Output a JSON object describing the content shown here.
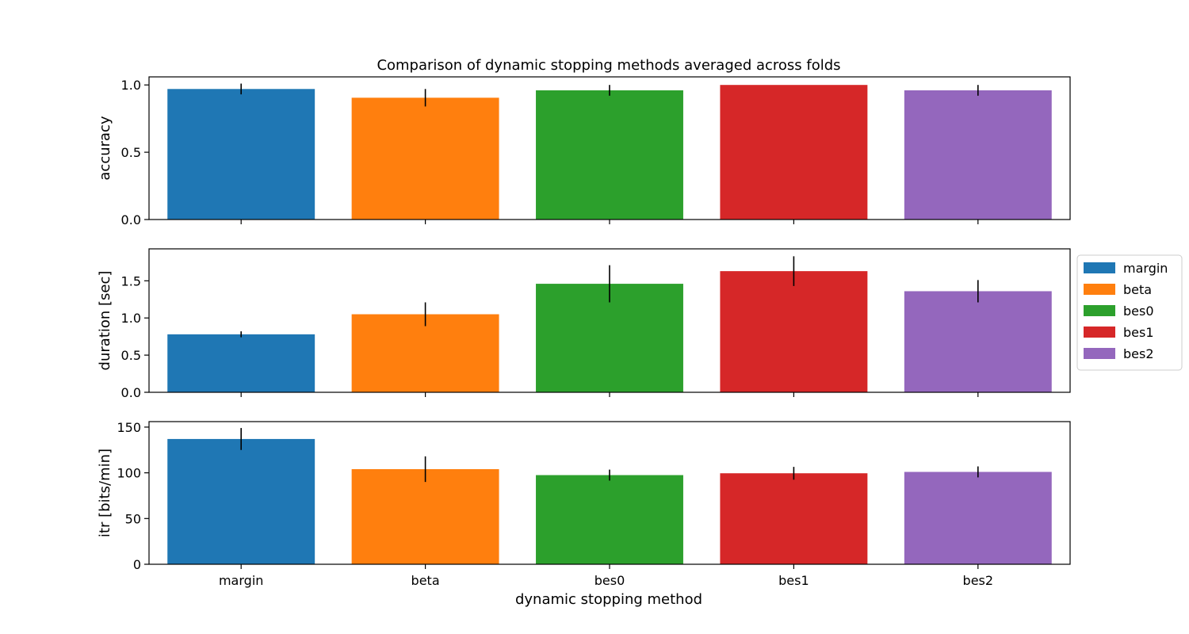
{
  "chart_data": {
    "type": "bar",
    "title": "Comparison of dynamic stopping methods averaged across folds",
    "xlabel": "dynamic stopping method",
    "categories": [
      "margin",
      "beta",
      "bes0",
      "bes1",
      "bes2"
    ],
    "colors": [
      "#1f77b4",
      "#ff7f0e",
      "#2ca02c",
      "#d62728",
      "#9467bd"
    ],
    "legend": {
      "placement": "right",
      "entries": [
        "margin",
        "beta",
        "bes0",
        "bes1",
        "bes2"
      ]
    },
    "panels": [
      {
        "ylabel": "accuracy",
        "ylim": [
          0,
          1.06
        ],
        "yticks": [
          0.0,
          0.5,
          1.0
        ],
        "ytick_labels": [
          "0.0",
          "0.5",
          "1.0"
        ],
        "values": [
          0.97,
          0.905,
          0.96,
          1.0,
          0.96
        ],
        "errors": [
          0.04,
          0.065,
          0.04,
          0.0,
          0.04
        ]
      },
      {
        "ylabel": "duration [sec]",
        "ylim": [
          0,
          1.93
        ],
        "yticks": [
          0.0,
          0.5,
          1.0,
          1.5
        ],
        "ytick_labels": [
          "0.0",
          "0.5",
          "1.0",
          "1.5"
        ],
        "values": [
          0.78,
          1.05,
          1.46,
          1.63,
          1.36
        ],
        "errors": [
          0.04,
          0.16,
          0.25,
          0.2,
          0.15
        ]
      },
      {
        "ylabel": "itr [bits/min]",
        "ylim": [
          0,
          156
        ],
        "yticks": [
          0,
          50,
          100,
          150
        ],
        "ytick_labels": [
          "0",
          "50",
          "100",
          "150"
        ],
        "values": [
          137,
          104,
          97.5,
          99.5,
          101
        ],
        "errors": [
          12,
          14,
          6,
          7,
          6
        ]
      }
    ]
  }
}
